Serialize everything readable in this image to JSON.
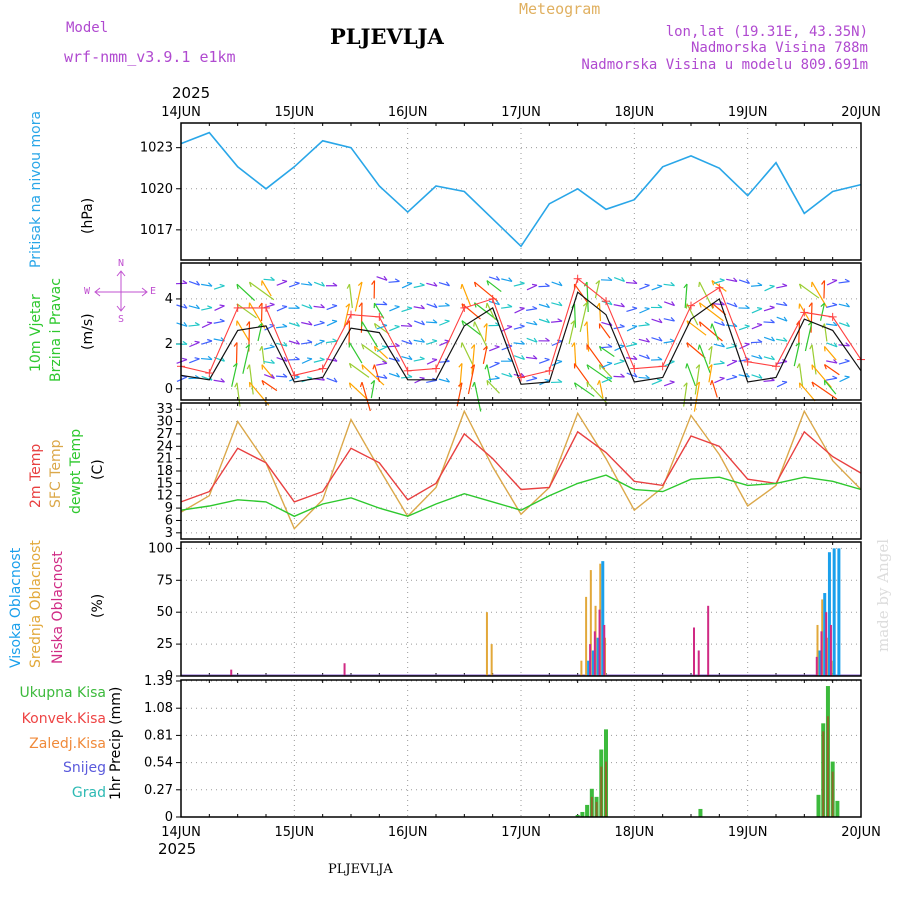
{
  "header": {
    "model_label": "Model",
    "model_name": "wrf-nmm_v3.9.1 e1km",
    "title": "PLJEVLJA",
    "meteogram": "Meteogram",
    "lonlat": "lon,lat (19.31E, 43.35N)",
    "altitude": "Nadmorska Visina 788m",
    "model_altitude": "Nadmorska Visina u modelu 809.691m"
  },
  "top_axis": {
    "year": "2025"
  },
  "bottom_axis": {
    "year": "2025"
  },
  "footer": {
    "station": "PLJEVLJA"
  },
  "watermark": "made by Angel",
  "days": [
    "14JUN",
    "15JUN",
    "16JUN",
    "17JUN",
    "18JUN",
    "19JUN",
    "20JUN"
  ],
  "panels": {
    "pressure": {
      "label": "Pritisak na nivou mora",
      "unit": "(hPa)"
    },
    "wind": {
      "label1": "10m Vjetar",
      "label2": "Brzina i Pravac",
      "unit": "(m/s)",
      "compass": {
        "n": "N",
        "s": "S",
        "e": "E",
        "w": "W"
      }
    },
    "temp": {
      "label1": "2m Temp",
      "label2": "SFC Temp",
      "label3": "dewpt Temp",
      "unit": "(C)"
    },
    "cloud": {
      "label1": "Visoka Oblacnost",
      "label2": "Srednja Oblacnost",
      "label3": "Niska Oblacnost",
      "unit": "(%)"
    },
    "precip": {
      "unit": "1hr Precip (mm)",
      "legend": [
        "Ukupna Kisa",
        "Konvek.Kisa",
        "Zaledj.Kisa",
        "Snijeg",
        "Grad"
      ]
    }
  },
  "colors": {
    "pressure": "#29a6e8",
    "t2m": "#e84040",
    "tsfc": "#dba84a",
    "dewpt": "#2ec82e",
    "wind_speed": "#111111",
    "wind_gust": "#ff4040",
    "cloud_high": "#1aa0ec",
    "cloud_mid": "#e2a83a",
    "cloud_low": "#d02a84",
    "precip_total": "#3cba3c",
    "precip_conv": "#ee4444",
    "precip_frz": "#f08a3a",
    "precip_snow": "#5a5adc",
    "precip_hail": "#2ebab4"
  },
  "chart_data": [
    {
      "type": "line",
      "ylabel": "(hPa)",
      "ylim": [
        1014.8,
        1024.8
      ],
      "yticks": [
        1017,
        1020,
        1023
      ],
      "grid": true,
      "x": [
        "2025-06-14T00",
        "2025-06-14T06",
        "2025-06-14T12",
        "2025-06-14T18",
        "2025-06-15T00",
        "2025-06-15T06",
        "2025-06-15T12",
        "2025-06-15T18",
        "2025-06-16T00",
        "2025-06-16T06",
        "2025-06-16T12",
        "2025-06-16T18",
        "2025-06-17T00",
        "2025-06-17T06",
        "2025-06-17T12",
        "2025-06-17T18",
        "2025-06-18T00",
        "2025-06-18T06",
        "2025-06-18T12",
        "2025-06-18T18",
        "2025-06-19T00",
        "2025-06-19T06",
        "2025-06-19T12",
        "2025-06-19T18",
        "2025-06-20T00"
      ],
      "series": [
        {
          "values": [
            1023.3,
            1024.1,
            1021.6,
            1020.0,
            1021.6,
            1023.5,
            1023.0,
            1020.2,
            1018.3,
            1020.2,
            1019.8,
            1017.8,
            1015.8,
            1018.9,
            1020.0,
            1018.5,
            1019.2,
            1021.6,
            1022.4,
            1021.5,
            1019.5,
            1021.9,
            1018.2,
            1019.8,
            1020.3
          ]
        }
      ]
    },
    {
      "type": "line",
      "ylabel": "(m/s)",
      "ylim": [
        -0.5,
        5.6
      ],
      "yticks": [
        0,
        2,
        4
      ],
      "grid": true,
      "x": [
        "2025-06-14T00",
        "2025-06-14T06",
        "2025-06-14T12",
        "2025-06-14T18",
        "2025-06-15T00",
        "2025-06-15T06",
        "2025-06-15T12",
        "2025-06-15T18",
        "2025-06-16T00",
        "2025-06-16T06",
        "2025-06-16T12",
        "2025-06-16T18",
        "2025-06-17T00",
        "2025-06-17T06",
        "2025-06-17T12",
        "2025-06-17T18",
        "2025-06-18T00",
        "2025-06-18T06",
        "2025-06-18T12",
        "2025-06-18T18",
        "2025-06-19T00",
        "2025-06-19T06",
        "2025-06-19T12",
        "2025-06-19T18",
        "2025-06-20T00"
      ],
      "series": [
        {
          "values": [
            0.6,
            0.4,
            2.6,
            2.8,
            0.3,
            0.5,
            2.7,
            2.5,
            0.4,
            0.4,
            2.8,
            3.6,
            0.2,
            0.3,
            4.3,
            3.3,
            0.3,
            0.5,
            3.1,
            4.0,
            0.3,
            0.5,
            3.1,
            2.6,
            0.8
          ]
        },
        {
          "values": [
            1.0,
            0.7,
            3.6,
            3.6,
            0.6,
            0.9,
            3.3,
            3.2,
            0.8,
            0.9,
            3.6,
            4.0,
            0.5,
            0.8,
            4.9,
            3.9,
            0.9,
            1.0,
            3.7,
            4.5,
            1.2,
            1.0,
            3.4,
            3.2,
            1.3
          ]
        }
      ]
    },
    {
      "type": "line",
      "ylabel": "(C)",
      "ylim": [
        1.5,
        34.5
      ],
      "yticks": [
        3,
        6,
        9,
        12,
        15,
        18,
        21,
        24,
        27,
        30,
        33
      ],
      "grid": true,
      "x": [
        "2025-06-14T00",
        "2025-06-14T06",
        "2025-06-14T12",
        "2025-06-14T18",
        "2025-06-15T00",
        "2025-06-15T06",
        "2025-06-15T12",
        "2025-06-15T18",
        "2025-06-16T00",
        "2025-06-16T06",
        "2025-06-16T12",
        "2025-06-16T18",
        "2025-06-17T00",
        "2025-06-17T06",
        "2025-06-17T12",
        "2025-06-17T18",
        "2025-06-18T00",
        "2025-06-18T06",
        "2025-06-18T12",
        "2025-06-18T18",
        "2025-06-19T00",
        "2025-06-19T06",
        "2025-06-19T12",
        "2025-06-19T18",
        "2025-06-20T00"
      ],
      "series": [
        {
          "values": [
            10.5,
            13.0,
            23.5,
            20.0,
            10.5,
            13.0,
            23.5,
            20.0,
            11.0,
            15.0,
            27.0,
            21.0,
            13.5,
            14.0,
            27.5,
            22.5,
            15.5,
            14.5,
            26.5,
            24.0,
            16.0,
            15.0,
            27.5,
            21.5,
            17.5
          ]
        },
        {
          "values": [
            8.0,
            12.0,
            30.0,
            20.0,
            4.0,
            11.0,
            30.5,
            18.5,
            7.0,
            14.0,
            32.5,
            19.0,
            7.5,
            14.0,
            32.0,
            21.0,
            8.5,
            14.0,
            31.5,
            22.0,
            9.5,
            14.5,
            32.5,
            20.5,
            13.5
          ]
        },
        {
          "values": [
            8.5,
            9.5,
            11.0,
            10.5,
            7.0,
            10.0,
            11.5,
            9.0,
            7.0,
            10.0,
            12.5,
            10.5,
            8.5,
            12.0,
            15.0,
            17.0,
            13.5,
            13.0,
            16.0,
            16.5,
            14.5,
            15.0,
            16.5,
            15.5,
            13.5
          ]
        }
      ]
    },
    {
      "type": "bar",
      "ylabel": "(%)",
      "ylim": [
        0,
        105
      ],
      "yticks": [
        0,
        25,
        50,
        75,
        100
      ],
      "grid": true,
      "series": [
        {
          "name": "Visoka Oblacnost",
          "x": [
            "2025-06-17T14",
            "2025-06-17T15",
            "2025-06-17T16",
            "2025-06-17T17",
            "2025-06-19T15",
            "2025-06-19T16",
            "2025-06-19T17",
            "2025-06-19T18",
            "2025-06-19T19"
          ],
          "values": [
            12,
            20,
            30,
            90,
            20,
            65,
            97,
            100,
            100
          ]
        },
        {
          "name": "Srednja Oblacnost",
          "x": [
            "2025-06-16T17",
            "2025-06-16T18",
            "2025-06-17T13",
            "2025-06-17T14",
            "2025-06-17T15",
            "2025-06-17T16",
            "2025-06-17T17",
            "2025-06-17T18",
            "2025-06-19T15",
            "2025-06-19T16",
            "2025-06-19T17",
            "2025-06-19T18"
          ],
          "values": [
            50,
            25,
            12,
            62,
            83,
            55,
            88,
            30,
            40,
            60,
            30,
            12
          ]
        },
        {
          "name": "Niska Oblacnost",
          "x": [
            "2025-06-14T10",
            "2025-06-15T10",
            "2025-06-17T14",
            "2025-06-17T15",
            "2025-06-17T16",
            "2025-06-17T17",
            "2025-06-18T12",
            "2025-06-18T13",
            "2025-06-18T15",
            "2025-06-19T14",
            "2025-06-19T15",
            "2025-06-19T16",
            "2025-06-19T17"
          ],
          "values": [
            5,
            10,
            25,
            35,
            52,
            40,
            38,
            20,
            55,
            15,
            35,
            50,
            40
          ]
        }
      ]
    },
    {
      "type": "bar",
      "ylabel": "1hr Precip (mm)",
      "ylim": [
        0,
        1.36
      ],
      "yticks": [
        0,
        0.27,
        0.54,
        0.81,
        1.08,
        1.35
      ],
      "grid": true,
      "series": [
        {
          "name": "Ukupna Kisa",
          "x": [
            "2025-06-17T12",
            "2025-06-17T13",
            "2025-06-17T14",
            "2025-06-17T15",
            "2025-06-17T16",
            "2025-06-17T17",
            "2025-06-17T18",
            "2025-06-18T14",
            "2025-06-19T15",
            "2025-06-19T16",
            "2025-06-19T17",
            "2025-06-19T18",
            "2025-06-19T19"
          ],
          "values": [
            0.02,
            0.05,
            0.12,
            0.28,
            0.2,
            0.67,
            0.87,
            0.08,
            0.22,
            0.93,
            1.3,
            0.55,
            0.16
          ]
        },
        {
          "name": "Konvek.Kisa",
          "x": [
            "2025-06-17T15",
            "2025-06-17T16",
            "2025-06-17T17",
            "2025-06-17T18",
            "2025-06-19T16",
            "2025-06-19T17",
            "2025-06-19T18"
          ],
          "values": [
            0.2,
            0.15,
            0.5,
            0.55,
            0.85,
            1.0,
            0.45
          ]
        }
      ]
    }
  ]
}
